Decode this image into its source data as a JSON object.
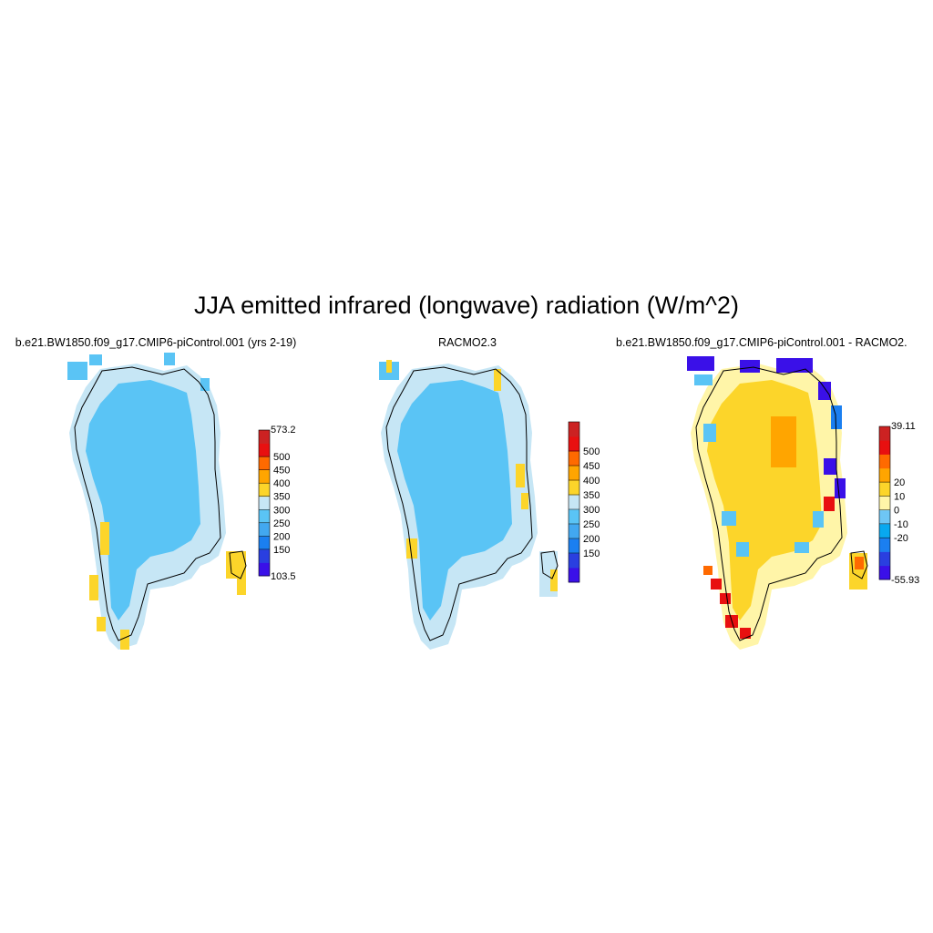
{
  "figure": {
    "title": "JJA emitted infrared (longwave) radiation (W/m^2)"
  },
  "panels": [
    {
      "id": "model",
      "title": "b.e21.BW1850.f09_g17.CMIP6-piControl.001 (yrs 2-19)",
      "colorbar": {
        "min_label": "103.5",
        "max_label": "573.2",
        "ticks": [
          "150",
          "200",
          "250",
          "300",
          "350",
          "400",
          "450",
          "500"
        ],
        "colors": [
          "#3a10e8",
          "#2a3fe0",
          "#1b7ff0",
          "#42a8f0",
          "#5ac4f5",
          "#c6e6f5",
          "#fcd52a",
          "#ffa500",
          "#ff6a00",
          "#e81010",
          "#cc2222"
        ]
      }
    },
    {
      "id": "obs",
      "title": "RACMO2.3",
      "colorbar": {
        "min_label": "",
        "max_label": "",
        "ticks": [
          "150",
          "200",
          "250",
          "300",
          "350",
          "400",
          "450",
          "500"
        ],
        "colors": [
          "#3a10e8",
          "#2a3fe0",
          "#1b7ff0",
          "#42a8f0",
          "#5ac4f5",
          "#c6e6f5",
          "#fcd52a",
          "#ffa500",
          "#ff6a00",
          "#e81010",
          "#cc2222"
        ]
      }
    },
    {
      "id": "diff",
      "title": "b.e21.BW1850.f09_g17.CMIP6-piControl.001 - RACMO2.",
      "colorbar": {
        "min_label": "-55.93",
        "max_label": "39.11",
        "ticks": [
          "-20",
          "-10",
          "0",
          "10",
          "20"
        ],
        "colors": [
          "#3a10e8",
          "#2a3fe0",
          "#1b7ff0",
          "#08a8f0",
          "#6ec6f5",
          "#fff5a8",
          "#fcd52a",
          "#ffa500",
          "#ff6a00",
          "#e81010",
          "#cc2222"
        ]
      }
    }
  ],
  "map_colors": {
    "ice_interior": "#5ac4f5",
    "ice_margin": "#c6e6f5",
    "warm_coast": "#fcd52a",
    "diff_positive": "#fcd52a",
    "diff_center": "#ffa500",
    "diff_weak": "#fff5a8",
    "diff_negative": "#3a10e8"
  }
}
